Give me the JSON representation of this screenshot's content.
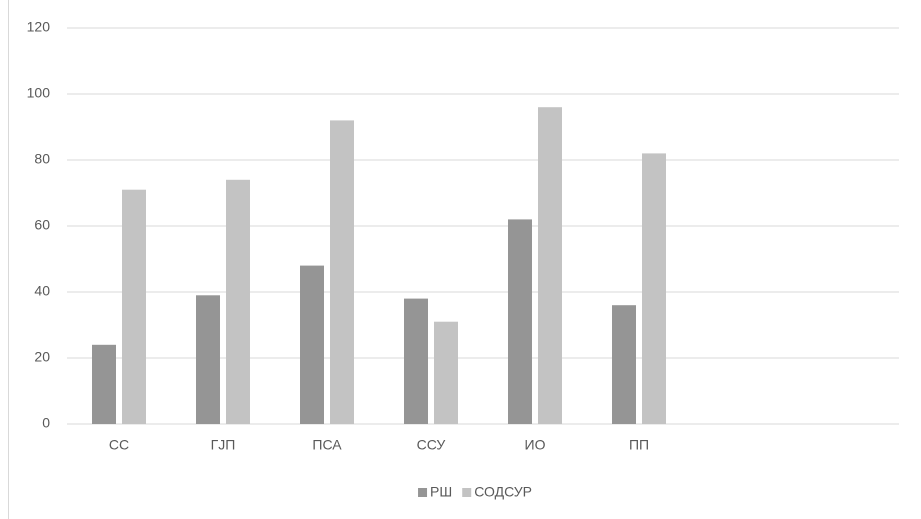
{
  "chart_data": {
    "type": "bar",
    "categories": [
      "СС",
      "ГЈП",
      "ПСА",
      "ССУ",
      "ИО",
      "ПП",
      null,
      null
    ],
    "series": [
      {
        "name": "РШ",
        "color": "#959595",
        "values": [
          24,
          39,
          48,
          38,
          62,
          36,
          null,
          null
        ]
      },
      {
        "name": "СОДСУР",
        "color": "#c3c3c3",
        "values": [
          71,
          74,
          92,
          31,
          96,
          82,
          null,
          null
        ]
      }
    ],
    "ylim": [
      0,
      120
    ],
    "yticks": [
      0,
      20,
      40,
      60,
      80,
      100,
      120
    ],
    "grid": true,
    "legend": "bottom"
  }
}
